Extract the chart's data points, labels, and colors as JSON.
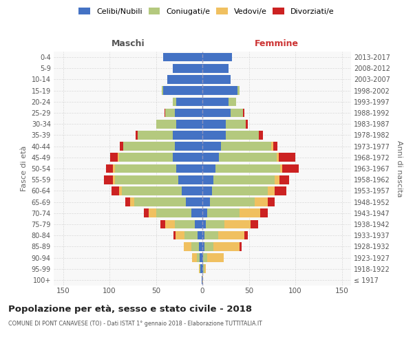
{
  "age_groups": [
    "100+",
    "95-99",
    "90-94",
    "85-89",
    "80-84",
    "75-79",
    "70-74",
    "65-69",
    "60-64",
    "55-59",
    "50-54",
    "45-49",
    "40-44",
    "35-39",
    "30-34",
    "25-29",
    "20-24",
    "15-19",
    "10-14",
    "5-9",
    "0-4"
  ],
  "birth_years": [
    "≤ 1917",
    "1918-1922",
    "1923-1927",
    "1928-1932",
    "1933-1937",
    "1938-1942",
    "1943-1947",
    "1948-1952",
    "1953-1957",
    "1958-1962",
    "1963-1967",
    "1968-1972",
    "1973-1977",
    "1978-1982",
    "1983-1987",
    "1988-1992",
    "1993-1997",
    "1998-2002",
    "2003-2007",
    "2008-2012",
    "2013-2017"
  ],
  "colors": {
    "celibi": "#4472c4",
    "coniugati": "#b4c97e",
    "vedovi": "#f0c060",
    "divorziati": "#cc2222"
  },
  "male": {
    "celibi": [
      1,
      2,
      3,
      4,
      5,
      8,
      12,
      18,
      22,
      26,
      28,
      32,
      30,
      32,
      28,
      30,
      28,
      42,
      38,
      32,
      42
    ],
    "coniugati": [
      0,
      1,
      3,
      8,
      14,
      22,
      38,
      55,
      65,
      68,
      66,
      58,
      55,
      38,
      22,
      10,
      4,
      2,
      0,
      0,
      0
    ],
    "vedovi": [
      0,
      1,
      5,
      8,
      10,
      10,
      8,
      5,
      3,
      2,
      2,
      1,
      0,
      0,
      0,
      0,
      0,
      0,
      0,
      0,
      0
    ],
    "divorziati": [
      0,
      0,
      0,
      0,
      2,
      5,
      5,
      5,
      8,
      10,
      8,
      8,
      4,
      2,
      0,
      1,
      0,
      0,
      0,
      0,
      0
    ]
  },
  "female": {
    "celibi": [
      0,
      1,
      1,
      2,
      2,
      4,
      5,
      8,
      10,
      12,
      14,
      18,
      20,
      25,
      25,
      30,
      28,
      38,
      30,
      28,
      32
    ],
    "coniugati": [
      0,
      1,
      4,
      10,
      15,
      20,
      35,
      48,
      60,
      66,
      70,
      62,
      54,
      36,
      22,
      14,
      8,
      2,
      0,
      0,
      0
    ],
    "vedovi": [
      1,
      2,
      18,
      28,
      28,
      28,
      22,
      14,
      8,
      5,
      2,
      2,
      2,
      0,
      0,
      0,
      0,
      0,
      0,
      0,
      0
    ],
    "divorziati": [
      0,
      0,
      0,
      2,
      4,
      8,
      8,
      8,
      12,
      10,
      18,
      18,
      5,
      4,
      2,
      1,
      0,
      0,
      0,
      0,
      0
    ]
  },
  "xlim": 160,
  "title": "Popolazione per età, sesso e stato civile - 2018",
  "subtitle": "COMUNE DI PONT CANAVESE (TO) - Dati ISTAT 1° gennaio 2018 - Elaborazione TUTTITALIA.IT",
  "xlabel_left": "Maschi",
  "xlabel_right": "Femmine",
  "ylabel_left": "Fasce di età",
  "ylabel_right": "Anni di nascita",
  "legend_labels": [
    "Celibi/Nubili",
    "Coniugati/e",
    "Vedovi/e",
    "Divorziati/e"
  ],
  "bg_color": "#f8f8f8",
  "grid_color": "#cccccc"
}
